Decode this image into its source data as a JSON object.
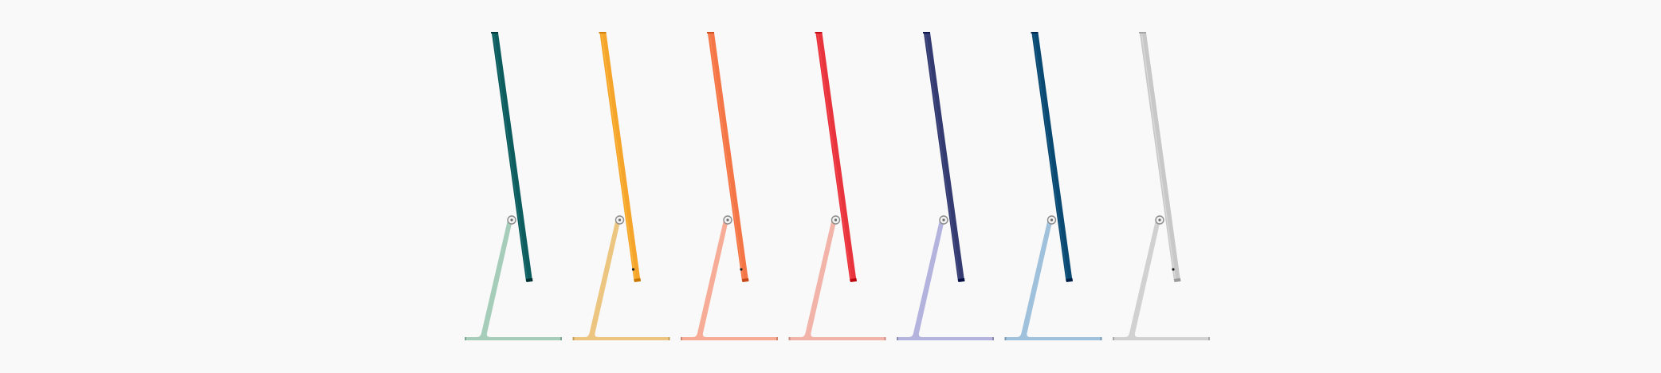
{
  "product_lineup": {
    "models": [
      {
        "name": "green",
        "display_color": "#0d5c5e",
        "stand_color": "#a6cdb9"
      },
      {
        "name": "yellow",
        "display_color": "#f5a52c",
        "stand_color": "#ecc681"
      },
      {
        "name": "orange",
        "display_color": "#f47546",
        "stand_color": "#f6ac96"
      },
      {
        "name": "pink",
        "display_color": "#e8343d",
        "stand_color": "#f2b4a9"
      },
      {
        "name": "purple",
        "display_color": "#333b70",
        "stand_color": "#b3b3de"
      },
      {
        "name": "blue",
        "display_color": "#0a4a72",
        "stand_color": "#a0c1db"
      },
      {
        "name": "silver",
        "display_color": "#c8c8c8",
        "stand_color": "#d1d1d1"
      }
    ]
  }
}
